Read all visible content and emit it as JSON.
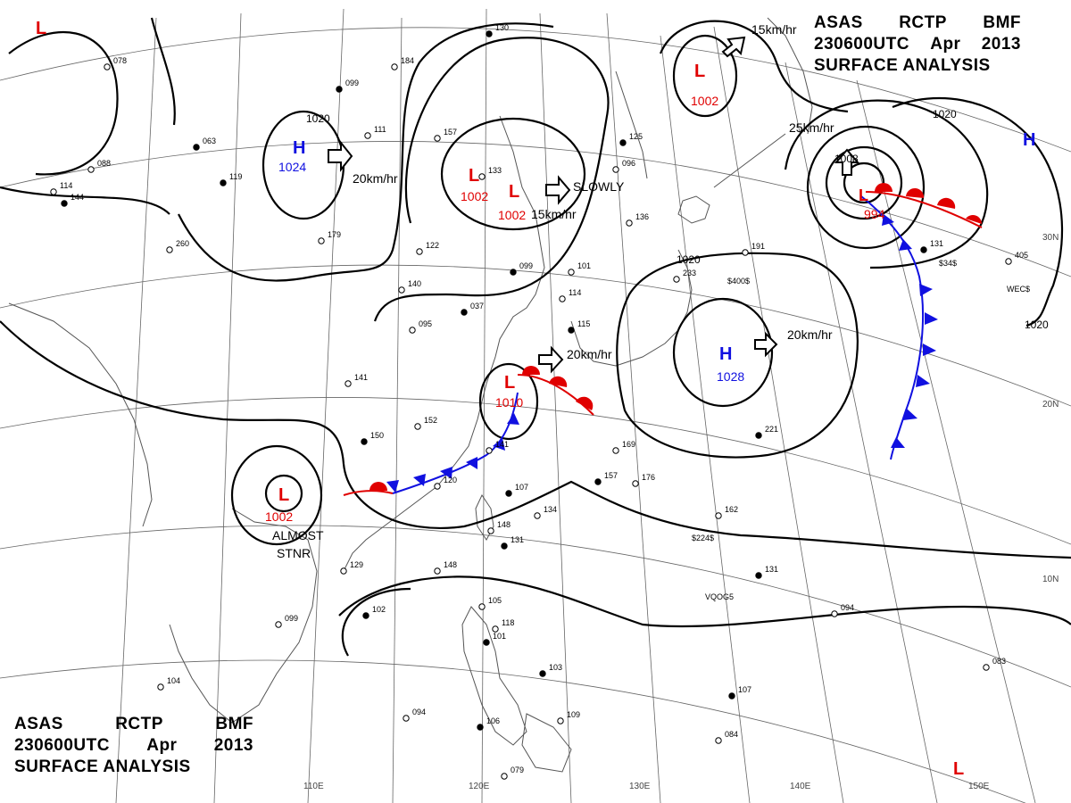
{
  "title_top_right": {
    "line1": [
      "ASAS",
      "RCTP",
      "BMF"
    ],
    "line2": [
      "230600UTC",
      "Apr",
      "2013"
    ],
    "line3": "SURFACE ANALYSIS"
  },
  "title_bottom_left": {
    "line1": [
      "ASAS",
      "RCTP",
      "BMF"
    ],
    "line2": [
      "230600UTC",
      "Apr",
      "2013"
    ],
    "line3": "SURFACE ANALYSIS"
  },
  "colors": {
    "high": "#1010e0",
    "low": "#e00000",
    "isobar": "#000000",
    "grid": "#555555",
    "coast": "#444444"
  },
  "grid_labels": {
    "lon": [
      "110E",
      "120E",
      "130E",
      "140E",
      "150E"
    ],
    "lat": [
      "30N",
      "20N",
      "10N"
    ]
  },
  "isobar_labels": [
    "1020",
    "1020",
    "1020",
    "1020"
  ],
  "pressure_centers": [
    {
      "id": "h-central-china",
      "type": "H",
      "value": "1024"
    },
    {
      "id": "h-pacific",
      "type": "H",
      "value": "1028"
    },
    {
      "id": "h-east-edge",
      "type": "H",
      "value": ""
    },
    {
      "id": "l-northwest-corner",
      "type": "L",
      "value": ""
    },
    {
      "id": "l-north-china-1",
      "type": "L",
      "value": "1002"
    },
    {
      "id": "l-north-china-2",
      "type": "L",
      "value": "1002"
    },
    {
      "id": "l-sea-of-okhotsk",
      "type": "L",
      "value": "1002"
    },
    {
      "id": "l-north-pacific",
      "type": "L",
      "value": "994"
    },
    {
      "id": "l-east-china-sea",
      "type": "L",
      "value": "1010"
    },
    {
      "id": "l-indochina",
      "type": "L",
      "value": "1002"
    },
    {
      "id": "l-southeast-corner",
      "type": "L",
      "value": ""
    }
  ],
  "movements": [
    {
      "id": "move-h-central-china",
      "label": "20km/hr"
    },
    {
      "id": "move-l-north-china-2",
      "label": "SLOWLY"
    },
    {
      "id": "move-l-north-china-2-speed",
      "label": "15km/hr"
    },
    {
      "id": "move-l-sea-of-okhotsk",
      "label": "15km/hr"
    },
    {
      "id": "move-l-north-pacific",
      "label": "25km/hr"
    },
    {
      "id": "move-l-east-china-sea",
      "label": "20km/hr"
    },
    {
      "id": "move-h-pacific",
      "label": "20km/hr"
    }
  ],
  "stationary_note": {
    "line1": "ALMOST",
    "line2": "STNR"
  },
  "storm_labels": {
    "l_north_pacific_1008": "1008"
  },
  "ship_labels": [
    "$400$",
    "$34$",
    "WEC$",
    "$224$",
    "VQOG5"
  ],
  "station_pressures": [
    "130",
    "078",
    "184",
    "099",
    "111",
    "157",
    "063",
    "088",
    "114",
    "144",
    "260",
    "179",
    "119",
    "122",
    "140",
    "099",
    "101",
    "095",
    "037",
    "133",
    "136",
    "125",
    "096",
    "114",
    "115",
    "141",
    "152",
    "150",
    "141",
    "120",
    "107",
    "134",
    "148",
    "131",
    "148",
    "129",
    "102",
    "105",
    "118",
    "101",
    "079",
    "094",
    "106",
    "099",
    "104",
    "103",
    "109",
    "169",
    "157",
    "176",
    "162",
    "221",
    "233",
    "191",
    "131",
    "094",
    "083",
    "107",
    "084",
    "405",
    "131"
  ]
}
